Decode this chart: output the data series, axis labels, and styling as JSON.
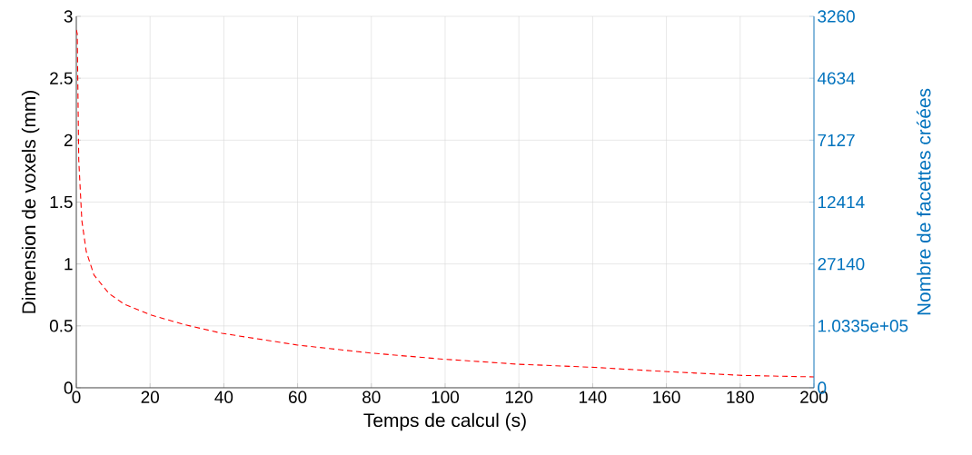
{
  "chart_data": {
    "type": "line",
    "xlabel": "Temps de calcul (s)",
    "ylabel": "Dimension de voxels (mm)",
    "y2label": "Nombre de facettes créées",
    "x": [
      0,
      0.25,
      0.66,
      1.5,
      2.7,
      4.8,
      8.9,
      13,
      20,
      29.3,
      39.5,
      60,
      80,
      100,
      120,
      140.5,
      160.4,
      180.6,
      200
    ],
    "series": [
      {
        "color": "#ff0000",
        "line_style": "dashed",
        "values": [
          2.89,
          2.86,
          1.84,
          1.35,
          1.1,
          0.91,
          0.76,
          0.675,
          0.59,
          0.51,
          0.44,
          0.345,
          0.28,
          0.23,
          0.19,
          0.165,
          0.13,
          0.1,
          0.088
        ]
      }
    ],
    "xlim": [
      0,
      200
    ],
    "xticks": [
      0,
      20,
      40,
      60,
      80,
      100,
      120,
      140,
      160,
      180,
      200
    ],
    "ylim": [
      0,
      3
    ],
    "yticks": [
      0,
      0.5,
      1,
      1.5,
      2,
      2.5,
      3
    ],
    "annotations": [
      "0",
      "1.0335e+05",
      "27140",
      "12414",
      "7127",
      "4634",
      "3260"
    ],
    "grid": true
  }
}
